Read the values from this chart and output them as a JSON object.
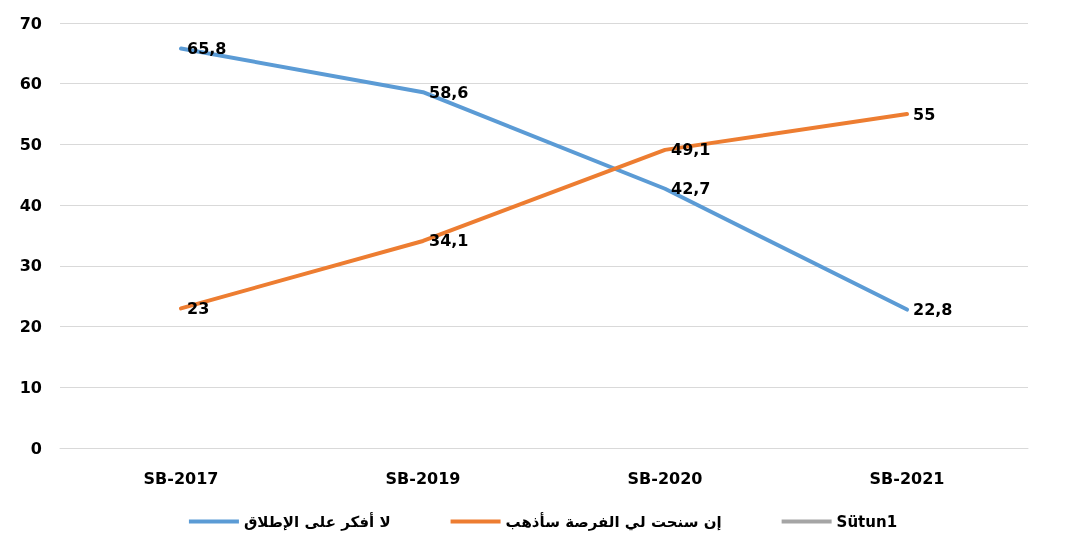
{
  "chart_data": {
    "type": "line",
    "categories": [
      "SB-2017",
      "SB-2019",
      "SB-2020",
      "SB-2021"
    ],
    "series": [
      {
        "name": "لا أفكر على الإطلاق",
        "color": "#5b9bd5",
        "values": [
          65.8,
          58.6,
          42.7,
          22.8
        ],
        "value_labels": [
          "65,8",
          "58,6",
          "42,7",
          "22,8"
        ]
      },
      {
        "name": "إن سنحت لي الفرصة سأذهب",
        "color": "#ed7d31",
        "values": [
          23,
          34.1,
          49.1,
          55
        ],
        "value_labels": [
          "23",
          "34,1",
          "49,1",
          "55"
        ]
      },
      {
        "name": "Sütun1",
        "color": "#a5a5a5",
        "values": [
          null,
          null,
          null,
          null
        ]
      }
    ],
    "ylim": [
      0,
      70
    ],
    "yticks": [
      0,
      10,
      20,
      30,
      40,
      50,
      60,
      70
    ],
    "grid": "y",
    "legend": "bottom",
    "marker": "none",
    "line_style": "solid"
  }
}
